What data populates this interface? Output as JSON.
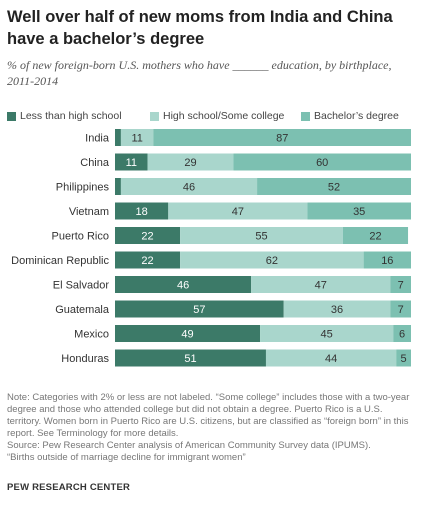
{
  "header": {
    "title": "Well over half of new moms from India and China have a bachelor’s degree",
    "subtitle": "% of new foreign-born U.S. mothers who have ______ education, by birthplace, 2011-2014"
  },
  "legend": [
    {
      "label": "Less than high school",
      "color": "#3c7a68"
    },
    {
      "label": "High school/Some college",
      "color": "#a9d6cc"
    },
    {
      "label": "Bachelor’s degree",
      "color": "#7cc0b1"
    }
  ],
  "chart_data": {
    "type": "bar",
    "orientation": "horizontal",
    "stacked": true,
    "categories": [
      "India",
      "China",
      "Philippines",
      "Vietnam",
      "Puerto Rico",
      "Dominican Republic",
      "El Salvador",
      "Guatemala",
      "Mexico",
      "Honduras"
    ],
    "series": [
      {
        "name": "Less than high school",
        "values": [
          2,
          11,
          2,
          18,
          22,
          22,
          46,
          57,
          49,
          51
        ],
        "labels": [
          "",
          "11",
          "",
          "18",
          "22",
          "22",
          "46",
          "57",
          "49",
          "51"
        ]
      },
      {
        "name": "High school/Some college",
        "values": [
          11,
          29,
          46,
          47,
          55,
          62,
          47,
          36,
          45,
          44
        ],
        "labels": [
          "11",
          "29",
          "46",
          "47",
          "55",
          "62",
          "47",
          "36",
          "45",
          "44"
        ]
      },
      {
        "name": "Bachelor’s degree",
        "values": [
          87,
          60,
          52,
          35,
          22,
          16,
          7,
          7,
          6,
          5
        ],
        "labels": [
          "87",
          "60",
          "52",
          "35",
          "22",
          "16",
          "7",
          "7",
          "6",
          "5"
        ]
      }
    ],
    "xlim": [
      0,
      100
    ],
    "grid": false,
    "legend_position": "top"
  },
  "footer": {
    "note": "Note: Categories with 2% or less are not labeled. “Some college” includes those with a two-year degree and those who attended college but did not obtain a degree. Puerto Rico is a U.S. territory. Women born in Puerto Rico are U.S. citizens, but are classified as “foreign born” in this report. See Terminology for more details.",
    "source": "Source: Pew Research Center analysis of American Community Survey data (IPUMS).",
    "source_title": "“Births outside of marriage decline for immigrant women”",
    "org": "PEW RESEARCH CENTER"
  }
}
